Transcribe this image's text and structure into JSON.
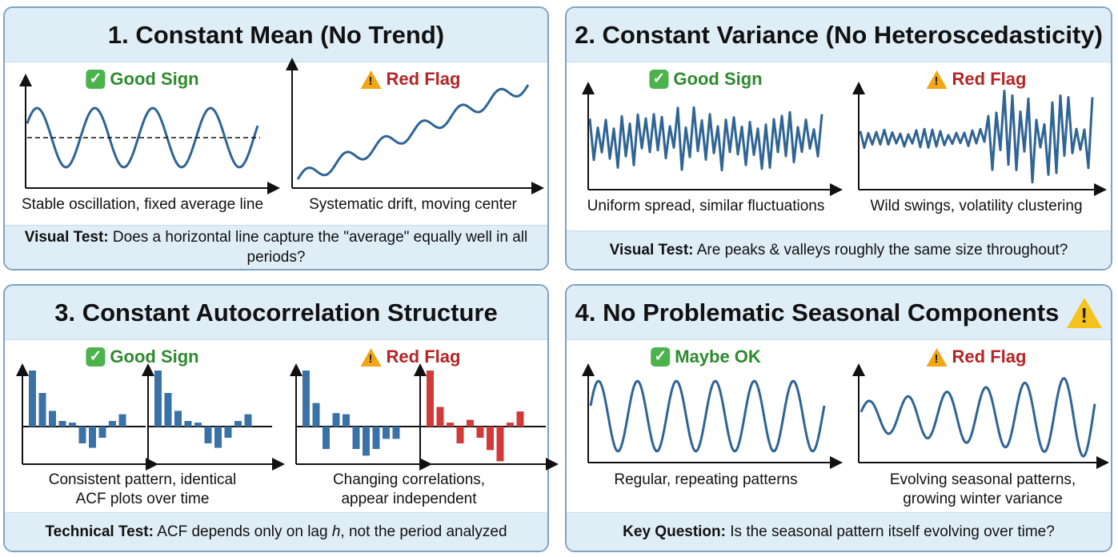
{
  "panels": [
    {
      "title": "1. Constant Mean (No Trend)",
      "good_label": "Good Sign",
      "bad_label": "Red Flag",
      "good_caption": "Stable oscillation, fixed average line",
      "bad_caption": "Systematic drift, moving center",
      "test_label": "Visual Test:",
      "test_text": "Does a horizontal line capture the \"average\" equally well in all periods?"
    },
    {
      "title": "2. Constant Variance (No Heteroscedasticity)",
      "good_label": "Good Sign",
      "bad_label": "Red Flag",
      "good_caption": "Uniform spread, similar fluctuations",
      "bad_caption": "Wild swings, volatility clustering",
      "test_label": "Visual Test:",
      "test_text": "Are peaks & valleys roughly the same size throughout?"
    },
    {
      "title": "3. Constant Autocorrelation Structure",
      "good_label": "Good Sign",
      "bad_label": "Red Flag",
      "good_caption_1": "Consistent pattern, identical",
      "good_caption_2": "ACF plots over time",
      "bad_caption_1": "Changing correlations,",
      "bad_caption_2": "appear independent",
      "test_label": "Technical Test:",
      "test_text_pre": "ACF depends only on lag ",
      "test_text_var": "h",
      "test_text_post": ", not the period analyzed"
    },
    {
      "title": "4. No Problematic Seasonal Components",
      "good_label": "Maybe OK",
      "bad_label": "Red Flag",
      "good_caption": "Regular, repeating patterns",
      "bad_caption_1": "Evolving seasonal patterns,",
      "bad_caption_2": "growing winter variance",
      "test_label": "Key Question:",
      "test_text": "Is the seasonal pattern itself evolving over time?"
    }
  ],
  "chart_data": [
    {
      "type": "bar",
      "name": "acf-good-1",
      "values": [
        1.0,
        0.6,
        0.28,
        0.1,
        0.07,
        -0.3,
        -0.38,
        -0.2,
        0.1,
        0.22
      ],
      "color": "#3a72a8"
    },
    {
      "type": "bar",
      "name": "acf-good-2",
      "values": [
        1.0,
        0.6,
        0.28,
        0.1,
        0.07,
        -0.3,
        -0.38,
        -0.2,
        0.1,
        0.22
      ],
      "color": "#3a72a8"
    },
    {
      "type": "bar",
      "name": "acf-red-1",
      "values": [
        1.0,
        0.42,
        -0.4,
        0.24,
        0.22,
        -0.4,
        -0.52,
        -0.4,
        -0.22,
        -0.22
      ],
      "color": "#3a72a8"
    },
    {
      "type": "bar",
      "name": "acf-red-2",
      "values": [
        1.0,
        0.35,
        0.07,
        -0.3,
        0.12,
        -0.2,
        -0.42,
        -0.62,
        0.07,
        0.27
      ],
      "color": "#d23a3a"
    }
  ],
  "colors": {
    "line": "#2f6494",
    "good": "#2e8a2e",
    "bad": "#b52525",
    "header": "#dfedf7",
    "border": "#7fa3c2"
  }
}
